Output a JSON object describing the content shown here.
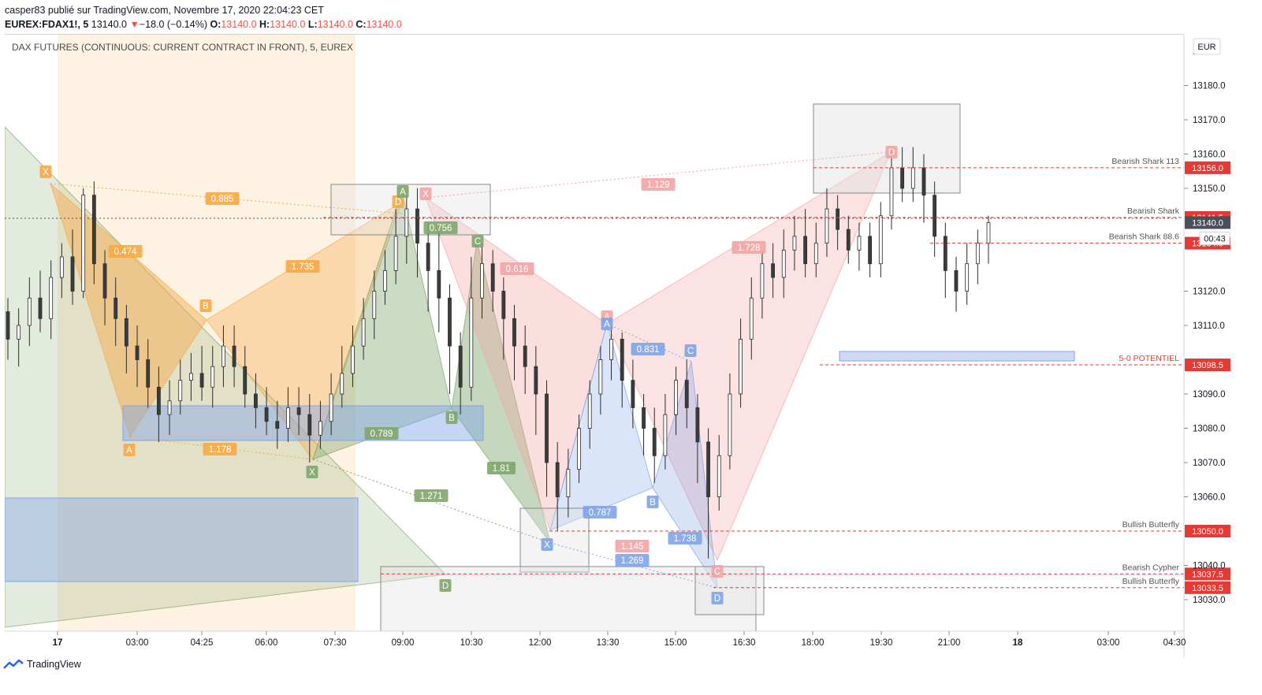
{
  "header": {
    "line1": "casper83 publié sur TradingView.com, Novembre 17, 2020 22:04:23 CET",
    "symbol": "EUREX:FDAX1!, 5",
    "price": "13140.0",
    "change_arrow": "▼",
    "change": "−18.0 (−0.14%)",
    "o_label": "O:",
    "o_value": "13140.0",
    "h_label": "H:",
    "h_value": "13140.0",
    "l_label": "L:",
    "l_value": "13140.0",
    "c_label": "C:",
    "c_value": "13140.0"
  },
  "footer": {
    "brand": "TradingView"
  },
  "colors": {
    "up_red": "#ef5350",
    "orange": "#f7a944",
    "green": "#7fa66b",
    "pink": "#f4a3a3",
    "blue": "#7fa3e8",
    "gray_box": "#9e9e9e",
    "level_red": "#e53935"
  },
  "chart_data": {
    "type": "candlestick",
    "title": "DAX FUTURES (CONTINUOUS: CURRENT CONTRACT IN FRONT), 5, EUREX",
    "currency": "EUR",
    "ylim": [
      13020,
      13190
    ],
    "y_ticks": [
      "13180.0",
      "13170.0",
      "13160.0",
      "13150.0",
      "13120.0",
      "13110.0",
      "13090.0",
      "13080.0",
      "13070.0",
      "13060.0",
      "13040.0",
      "13030.0"
    ],
    "y_top_partial": "131",
    "x_ticks": [
      "17",
      "03:00",
      "04:25",
      "06:00",
      "07:30",
      "09:00",
      "10:30",
      "12:00",
      "13:30",
      "15:00",
      "16:30",
      "18:00",
      "19:30",
      "21:00",
      "18",
      "03:00",
      "04:30"
    ],
    "levels": [
      {
        "label": "Bearish Shark 113",
        "value": 13156.0
      },
      {
        "label": "Bearish Shark",
        "value": 13141.5
      },
      {
        "label": "Bearish Shark 88.6",
        "value": 13134.0
      },
      {
        "label": "5-0 POTENTIEL",
        "value": 13098.5
      },
      {
        "label": "Bullish Butterfly",
        "value": 13050.0
      },
      {
        "label": "Bearish Cypher",
        "value": 13037.5
      },
      {
        "label": "Bullish Butterfly",
        "value": 13033.5
      }
    ],
    "last_price": "13140.0",
    "countdown": "00:43",
    "patterns": {
      "orange": {
        "points": [
          "X",
          "A",
          "B",
          "X",
          "C",
          "D"
        ],
        "ratios": [
          "0.885",
          "0.474",
          "1.735",
          "1.178"
        ]
      },
      "green": {
        "points": [
          "A",
          "X",
          "B",
          "C",
          "D"
        ],
        "ratios": [
          "0.756",
          "0.789",
          "1.81",
          "1.271"
        ]
      },
      "pink": {
        "points": [
          "X",
          "A",
          "B",
          "C",
          "D"
        ],
        "ratios": [
          "1.129",
          "0.616",
          "1.728",
          "1.145"
        ]
      },
      "blue": {
        "points": [
          "X",
          "A",
          "B",
          "C",
          "D"
        ],
        "ratios": [
          "0.831",
          "0.787",
          "1.738",
          "1.269"
        ]
      }
    },
    "candles": [
      [
        13114,
        13106,
        13118,
        13100
      ],
      [
        13106,
        13110,
        13115,
        13098
      ],
      [
        13110,
        13118,
        13124,
        13104
      ],
      [
        13118,
        13112,
        13126,
        13108
      ],
      [
        13112,
        13124,
        13129,
        13106
      ],
      [
        13124,
        13130,
        13134,
        13118
      ],
      [
        13130,
        13120,
        13138,
        13116
      ],
      [
        13120,
        13148,
        13150,
        13118
      ],
      [
        13148,
        13128,
        13152,
        13122
      ],
      [
        13128,
        13118,
        13132,
        13110
      ],
      [
        13118,
        13112,
        13124,
        13104
      ],
      [
        13112,
        13104,
        13116,
        13096
      ],
      [
        13104,
        13100,
        13110,
        13092
      ],
      [
        13100,
        13092,
        13106,
        13086
      ],
      [
        13092,
        13084,
        13098,
        13076
      ],
      [
        13084,
        13088,
        13094,
        13078
      ],
      [
        13088,
        13094,
        13100,
        13084
      ],
      [
        13094,
        13096,
        13102,
        13088
      ],
      [
        13096,
        13092,
        13104,
        13088
      ],
      [
        13092,
        13098,
        13104,
        13086
      ],
      [
        13098,
        13104,
        13110,
        13092
      ],
      [
        13104,
        13098,
        13110,
        13092
      ],
      [
        13098,
        13090,
        13104,
        13086
      ],
      [
        13090,
        13086,
        13096,
        13080
      ],
      [
        13086,
        13082,
        13092,
        13078
      ],
      [
        13082,
        13080,
        13088,
        13074
      ],
      [
        13080,
        13086,
        13092,
        13076
      ],
      [
        13086,
        13084,
        13092,
        13078
      ],
      [
        13084,
        13078,
        13090,
        13070
      ],
      [
        13078,
        13082,
        13088,
        13074
      ],
      [
        13082,
        13090,
        13096,
        13078
      ],
      [
        13090,
        13096,
        13104,
        13086
      ],
      [
        13096,
        13104,
        13110,
        13092
      ],
      [
        13104,
        13112,
        13118,
        13100
      ],
      [
        13112,
        13120,
        13126,
        13106
      ],
      [
        13120,
        13126,
        13132,
        13116
      ],
      [
        13126,
        13136,
        13144,
        13122
      ],
      [
        13136,
        13144,
        13148,
        13128
      ],
      [
        13144,
        13134,
        13150,
        13124
      ],
      [
        13134,
        13126,
        13140,
        13114
      ],
      [
        13126,
        13118,
        13138,
        13108
      ],
      [
        13118,
        13104,
        13122,
        13090
      ],
      [
        13104,
        13092,
        13108,
        13084
      ],
      [
        13092,
        13118,
        13130,
        13088
      ],
      [
        13118,
        13128,
        13134,
        13112
      ],
      [
        13128,
        13120,
        13132,
        13114
      ],
      [
        13120,
        13112,
        13124,
        13100
      ],
      [
        13112,
        13104,
        13116,
        13094
      ],
      [
        13104,
        13098,
        13110,
        13090
      ],
      [
        13098,
        13090,
        13104,
        13078
      ],
      [
        13090,
        13070,
        13094,
        13060
      ],
      [
        13070,
        13060,
        13076,
        13050
      ],
      [
        13060,
        13068,
        13074,
        13054
      ],
      [
        13068,
        13080,
        13084,
        13064
      ],
      [
        13080,
        13090,
        13094,
        13074
      ],
      [
        13090,
        13100,
        13104,
        13084
      ],
      [
        13100,
        13106,
        13110,
        13094
      ],
      [
        13106,
        13094,
        13108,
        13086
      ],
      [
        13094,
        13086,
        13100,
        13080
      ],
      [
        13086,
        13080,
        13090,
        13072
      ],
      [
        13080,
        13072,
        13086,
        13064
      ],
      [
        13072,
        13084,
        13090,
        13068
      ],
      [
        13084,
        13094,
        13098,
        13078
      ],
      [
        13094,
        13086,
        13100,
        13080
      ],
      [
        13086,
        13076,
        13090,
        13064
      ],
      [
        13076,
        13060,
        13080,
        13042
      ],
      [
        13060,
        13072,
        13078,
        13056
      ],
      [
        13072,
        13090,
        13096,
        13068
      ],
      [
        13090,
        13106,
        13112,
        13086
      ],
      [
        13106,
        13118,
        13124,
        13100
      ],
      [
        13118,
        13128,
        13132,
        13112
      ],
      [
        13128,
        13124,
        13134,
        13118
      ],
      [
        13124,
        13132,
        13138,
        13118
      ],
      [
        13132,
        13136,
        13142,
        13126
      ],
      [
        13136,
        13128,
        13144,
        13124
      ],
      [
        13128,
        13134,
        13140,
        13124
      ],
      [
        13134,
        13144,
        13150,
        13130
      ],
      [
        13144,
        13138,
        13148,
        13132
      ],
      [
        13138,
        13132,
        13142,
        13128
      ],
      [
        13132,
        13136,
        13140,
        13126
      ],
      [
        13136,
        13128,
        13140,
        13124
      ],
      [
        13128,
        13142,
        13146,
        13124
      ],
      [
        13142,
        13156,
        13162,
        13138
      ],
      [
        13156,
        13150,
        13162,
        13146
      ],
      [
        13150,
        13156,
        13162,
        13146
      ],
      [
        13156,
        13148,
        13160,
        13140
      ],
      [
        13148,
        13136,
        13152,
        13130
      ],
      [
        13136,
        13126,
        13140,
        13118
      ],
      [
        13126,
        13120,
        13130,
        13114
      ],
      [
        13120,
        13128,
        13134,
        13116
      ],
      [
        13128,
        13134,
        13138,
        13122
      ],
      [
        13134,
        13140,
        13142,
        13128
      ]
    ]
  }
}
